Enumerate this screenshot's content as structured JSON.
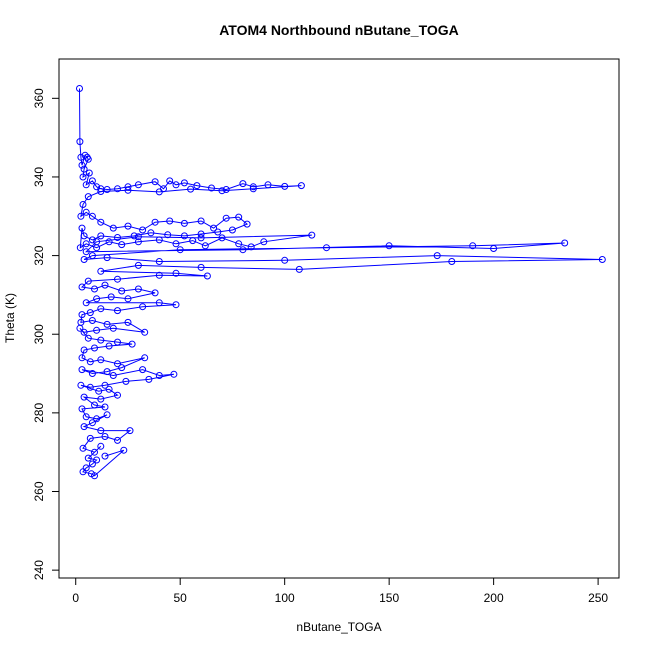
{
  "chart_data": {
    "type": "scatter",
    "title": "ATOM4 Northbound nButane_TOGA",
    "xlabel": "nButane_TOGA",
    "ylabel": "Theta (K)",
    "xlim": [
      -8,
      260
    ],
    "ylim": [
      238,
      370
    ],
    "xticks": [
      "0",
      "50",
      "100",
      "150",
      "200",
      "250"
    ],
    "yticks": [
      "240",
      "260",
      "280",
      "300",
      "320",
      "340",
      "360"
    ],
    "grid": false,
    "style": "points connected by lines",
    "color": "#0000ff",
    "series": [
      {
        "points": [
          [
            1.8,
            362.5
          ],
          [
            2.0,
            349.0
          ],
          [
            2.5,
            345.0
          ],
          [
            3.0,
            343.0
          ],
          [
            4.5,
            345.5
          ],
          [
            5.5,
            345.0
          ],
          [
            6.0,
            344.5
          ],
          [
            4.0,
            342.0
          ],
          [
            3.5,
            340.0
          ],
          [
            6.5,
            341.0
          ],
          [
            5.0,
            338.0
          ],
          [
            8.0,
            339.0
          ],
          [
            10.0,
            337.5
          ],
          [
            12.0,
            337.0
          ],
          [
            15.0,
            336.8
          ],
          [
            20.0,
            337.0
          ],
          [
            25.0,
            337.5
          ],
          [
            30.0,
            338.0
          ],
          [
            38.0,
            338.8
          ],
          [
            42.0,
            337.0
          ],
          [
            45.0,
            339.0
          ],
          [
            48.0,
            338.0
          ],
          [
            52.0,
            338.5
          ],
          [
            58.0,
            337.8
          ],
          [
            65.0,
            337.2
          ],
          [
            72.0,
            336.8
          ],
          [
            80.0,
            338.3
          ],
          [
            85.0,
            337.5
          ],
          [
            92.0,
            338.0
          ],
          [
            100.0,
            337.6
          ],
          [
            108.0,
            337.8
          ],
          [
            85.0,
            337.0
          ],
          [
            70.0,
            336.5
          ],
          [
            55.0,
            336.9
          ],
          [
            40.0,
            336.2
          ],
          [
            25.0,
            336.6
          ],
          [
            12.0,
            336.3
          ],
          [
            6.0,
            335.0
          ],
          [
            3.5,
            333.0
          ],
          [
            2.5,
            330.0
          ],
          [
            5.0,
            331.0
          ],
          [
            8.0,
            330.0
          ],
          [
            12.0,
            328.5
          ],
          [
            18.0,
            327.0
          ],
          [
            25.0,
            327.5
          ],
          [
            32.0,
            326.5
          ],
          [
            38.0,
            328.5
          ],
          [
            45.0,
            328.8
          ],
          [
            52.0,
            328.2
          ],
          [
            60.0,
            328.8
          ],
          [
            66.0,
            327.0
          ],
          [
            72.0,
            329.5
          ],
          [
            78.0,
            329.8
          ],
          [
            82.0,
            328.0
          ],
          [
            75.0,
            326.5
          ],
          [
            68.0,
            326.0
          ],
          [
            60.0,
            325.5
          ],
          [
            52.0,
            325.0
          ],
          [
            44.0,
            325.3
          ],
          [
            36.0,
            325.8
          ],
          [
            28.0,
            325.0
          ],
          [
            20.0,
            324.6
          ],
          [
            12.0,
            325.0
          ],
          [
            8.0,
            324.0
          ],
          [
            4.0,
            325.0
          ],
          [
            3.0,
            327.0
          ],
          [
            2.2,
            322.0
          ],
          [
            5.0,
            323.0
          ],
          [
            10.0,
            322.0
          ],
          [
            16.0,
            323.5
          ],
          [
            22.0,
            322.8
          ],
          [
            30.0,
            323.5
          ],
          [
            40.0,
            324.0
          ],
          [
            48.0,
            323.0
          ],
          [
            56.0,
            323.8
          ],
          [
            62.0,
            322.5
          ],
          [
            70.0,
            324.5
          ],
          [
            78.0,
            323.0
          ],
          [
            84.0,
            322.2
          ],
          [
            90.0,
            323.5
          ],
          [
            113.0,
            325.2
          ],
          [
            60.0,
            324.5
          ],
          [
            30.0,
            324.8
          ],
          [
            10.0,
            323.5
          ],
          [
            5.0,
            321.0
          ],
          [
            80.0,
            321.5
          ],
          [
            150.0,
            322.5
          ],
          [
            200.0,
            321.8
          ],
          [
            234.0,
            323.2
          ],
          [
            190.0,
            322.5
          ],
          [
            120.0,
            322.0
          ],
          [
            50.0,
            321.5
          ],
          [
            8.0,
            320.0
          ],
          [
            4.0,
            319.0
          ],
          [
            15.0,
            319.5
          ],
          [
            40.0,
            318.5
          ],
          [
            100.0,
            318.8
          ],
          [
            173.0,
            320.0
          ],
          [
            252.0,
            319.0
          ],
          [
            180.0,
            318.5
          ],
          [
            107.0,
            316.5
          ],
          [
            60.0,
            317.0
          ],
          [
            30.0,
            317.5
          ],
          [
            12.0,
            316.0
          ],
          [
            48.0,
            315.5
          ],
          [
            63.0,
            314.8
          ],
          [
            40.0,
            315.0
          ],
          [
            20.0,
            314.0
          ],
          [
            6.0,
            313.5
          ],
          [
            3.0,
            312.0
          ],
          [
            9.0,
            311.5
          ],
          [
            14.0,
            312.5
          ],
          [
            22.0,
            311.0
          ],
          [
            30.0,
            311.5
          ],
          [
            38.0,
            310.5
          ],
          [
            25.0,
            309.0
          ],
          [
            17.0,
            309.5
          ],
          [
            10.0,
            309.0
          ],
          [
            5.0,
            308.0
          ],
          [
            40.0,
            308.0
          ],
          [
            48.0,
            307.5
          ],
          [
            32.0,
            307.0
          ],
          [
            20.0,
            306.0
          ],
          [
            12.0,
            306.5
          ],
          [
            7.0,
            305.5
          ],
          [
            3.0,
            305.0
          ],
          [
            2.5,
            303.0
          ],
          [
            8.0,
            303.5
          ],
          [
            15.0,
            302.5
          ],
          [
            25.0,
            303.0
          ],
          [
            33.0,
            300.5
          ],
          [
            18.0,
            301.5
          ],
          [
            10.0,
            301.0
          ],
          [
            4.0,
            300.5
          ],
          [
            2.0,
            301.5
          ],
          [
            6.0,
            299.0
          ],
          [
            12.0,
            298.5
          ],
          [
            20.0,
            298.0
          ],
          [
            27.0,
            297.5
          ],
          [
            16.0,
            297.0
          ],
          [
            9.0,
            296.5
          ],
          [
            4.0,
            296.0
          ],
          [
            3.0,
            294.0
          ],
          [
            7.0,
            293.0
          ],
          [
            12.0,
            293.5
          ],
          [
            20.0,
            292.5
          ],
          [
            33.0,
            294.0
          ],
          [
            22.0,
            291.5
          ],
          [
            15.0,
            290.5
          ],
          [
            8.0,
            290.0
          ],
          [
            3.0,
            291.0
          ],
          [
            18.0,
            289.5
          ],
          [
            32.0,
            291.0
          ],
          [
            40.0,
            289.5
          ],
          [
            47.0,
            289.8
          ],
          [
            35.0,
            288.5
          ],
          [
            24.0,
            288.0
          ],
          [
            14.0,
            287.0
          ],
          [
            7.0,
            286.5
          ],
          [
            2.5,
            287.0
          ],
          [
            11.0,
            285.5
          ],
          [
            16.0,
            286.0
          ],
          [
            20.0,
            284.5
          ],
          [
            12.0,
            283.5
          ],
          [
            4.0,
            284.0
          ],
          [
            9.0,
            282.0
          ],
          [
            14.0,
            281.5
          ],
          [
            3.0,
            281.0
          ],
          [
            5.0,
            279.0
          ],
          [
            10.0,
            278.5
          ],
          [
            15.0,
            279.5
          ],
          [
            8.0,
            277.5
          ],
          [
            4.0,
            276.5
          ],
          [
            12.0,
            275.5
          ],
          [
            26.0,
            275.5
          ],
          [
            20.0,
            273.0
          ],
          [
            14.0,
            274.0
          ],
          [
            7.0,
            273.5
          ],
          [
            3.5,
            271.0
          ],
          [
            9.0,
            270.0
          ],
          [
            12.0,
            271.5
          ],
          [
            6.0,
            268.5
          ],
          [
            10.0,
            268.0
          ],
          [
            8.0,
            267.0
          ],
          [
            5.0,
            266.0
          ],
          [
            3.5,
            265.0
          ],
          [
            7.5,
            264.5
          ],
          [
            9.0,
            264.0
          ],
          [
            23.0,
            270.5
          ],
          [
            14.0,
            269.0
          ]
        ]
      }
    ]
  }
}
